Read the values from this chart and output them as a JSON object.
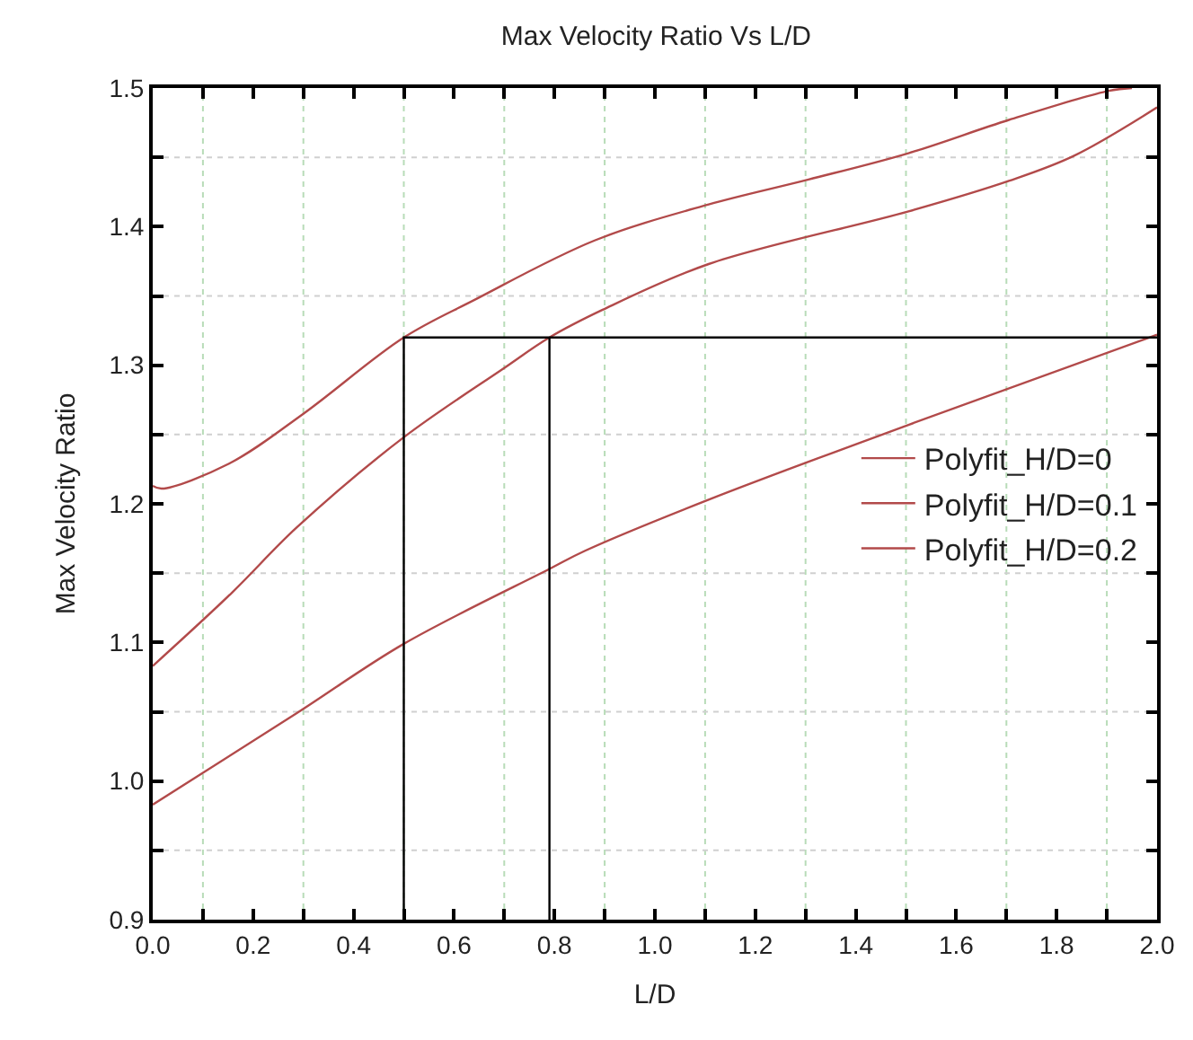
{
  "chart_data": {
    "type": "line",
    "title": "Max Velocity Ratio Vs L/D",
    "xlabel": "L/D",
    "ylabel": "Max Velocity Ratio",
    "xlim": [
      0,
      2.0
    ],
    "ylim": [
      0.9,
      1.5
    ],
    "xticks": [
      {
        "value": 0.0,
        "label": "0.0"
      },
      {
        "value": 0.1,
        "label": null
      },
      {
        "value": 0.2,
        "label": "0.2"
      },
      {
        "value": 0.3,
        "label": null
      },
      {
        "value": 0.4,
        "label": "0.4"
      },
      {
        "value": 0.5,
        "label": null
      },
      {
        "value": 0.6,
        "label": "0.6"
      },
      {
        "value": 0.7,
        "label": null
      },
      {
        "value": 0.8,
        "label": "0.8"
      },
      {
        "value": 0.9,
        "label": null
      },
      {
        "value": 1.0,
        "label": "1.0"
      },
      {
        "value": 1.1,
        "label": null
      },
      {
        "value": 1.2,
        "label": "1.2"
      },
      {
        "value": 1.3,
        "label": null
      },
      {
        "value": 1.4,
        "label": "1.4"
      },
      {
        "value": 1.5,
        "label": null
      },
      {
        "value": 1.6,
        "label": "1.6"
      },
      {
        "value": 1.7,
        "label": null
      },
      {
        "value": 1.8,
        "label": "1.8"
      },
      {
        "value": 1.9,
        "label": null
      },
      {
        "value": 2.0,
        "label": "2.0"
      }
    ],
    "yticks": [
      {
        "value": 0.9,
        "label": "0.9"
      },
      {
        "value": 0.95,
        "label": null
      },
      {
        "value": 1.0,
        "label": "1.0"
      },
      {
        "value": 1.05,
        "label": null
      },
      {
        "value": 1.1,
        "label": "1.1"
      },
      {
        "value": 1.15,
        "label": null
      },
      {
        "value": 1.2,
        "label": "1.2"
      },
      {
        "value": 1.25,
        "label": null
      },
      {
        "value": 1.3,
        "label": "1.3"
      },
      {
        "value": 1.35,
        "label": null
      },
      {
        "value": 1.4,
        "label": "1.4"
      },
      {
        "value": 1.45,
        "label": null
      },
      {
        "value": 1.5,
        "label": "1.5"
      }
    ],
    "grid": true,
    "legend": "right",
    "marker": "none",
    "line_style": "solid",
    "series": [
      {
        "name": "Polyfit_H/D=0",
        "color": "#b24a4a",
        "x": [
          0,
          0.018,
          0.152,
          0.3,
          0.5,
          0.64,
          0.88,
          1.107,
          1.306,
          1.505,
          1.705,
          1.904,
          1.95
        ],
        "values": [
          1.213,
          1.211,
          1.229,
          1.265,
          1.32,
          1.347,
          1.39,
          1.416,
          1.434,
          1.453,
          1.477,
          1.498,
          1.5
        ]
      },
      {
        "name": "Polyfit_H/D=0.1",
        "color": "#b24a4a",
        "x": [
          0,
          0.158,
          0.287,
          0.5,
          0.7,
          0.79,
          0.896,
          1.107,
          1.505,
          1.705,
          1.834,
          2.0
        ],
        "values": [
          1.083,
          1.136,
          1.183,
          1.248,
          1.298,
          1.32,
          1.34,
          1.373,
          1.411,
          1.433,
          1.451,
          1.486
        ]
      },
      {
        "name": "Polyfit_H/D=0.2",
        "color": "#b24a4a",
        "x": [
          0,
          0.287,
          0.5,
          0.79,
          0.86,
          1.107,
          1.505,
          2.0
        ],
        "values": [
          0.983,
          1.049,
          1.099,
          1.153,
          1.166,
          1.203,
          1.257,
          1.322
        ]
      },
      {
        "type": "line",
        "color": "#000000",
        "x": [
          0.5,
          0.5,
          2.0
        ],
        "values": [
          0.9,
          1.32,
          1.32
        ]
      },
      {
        "type": "line",
        "color": "#000000",
        "x": [
          0.79,
          0.79
        ],
        "values": [
          0.9,
          1.32
        ]
      }
    ]
  }
}
